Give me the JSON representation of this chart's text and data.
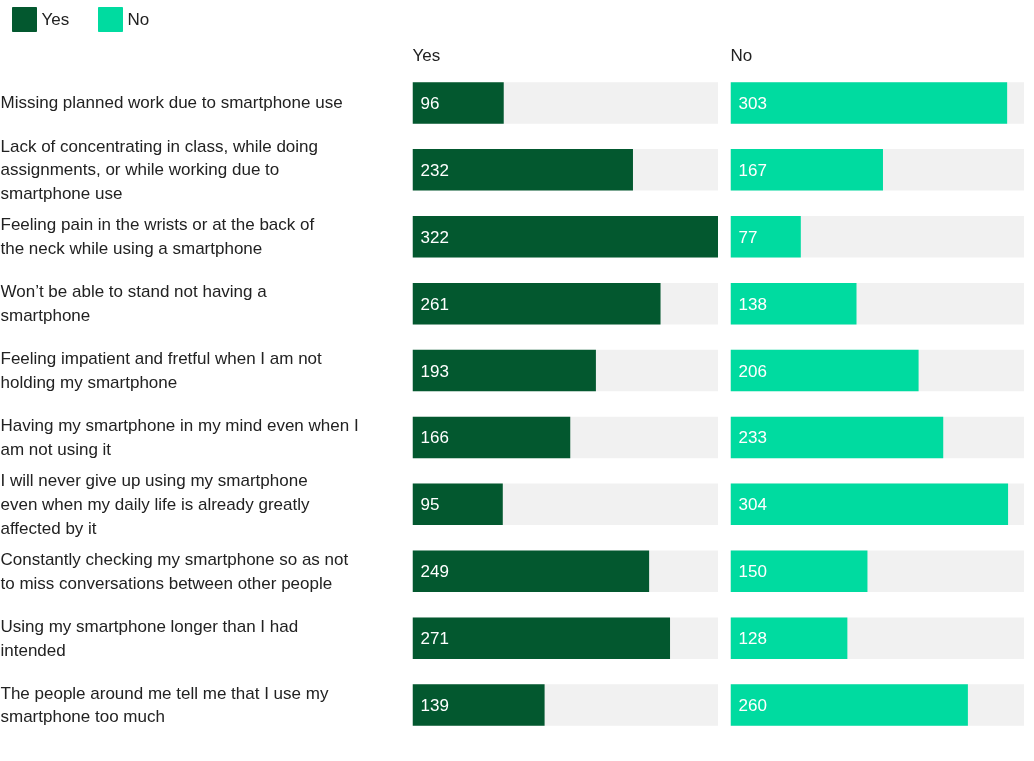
{
  "chart_data": [
    {
      "type": "bar",
      "orientation": "horizontal",
      "title": "Yes",
      "categories": [
        "Missing planned work due to smartphone use",
        "Lack of concentrating in class, while doing assignments, or while working due to smartphone use",
        "Feeling pain in the wrists or at the back of the neck while using a smartphone",
        "Won’t be able to stand not having a smartphone",
        "Feeling impatient and fretful when I am not holding my smartphone",
        "Having my smartphone in my mind even when I am not using it",
        "I will never give up using my smartphone even when my daily life is already greatly affected by it",
        "Constantly checking my smartphone so as not to miss conversations between other people",
        "Using my smartphone longer than I had intended",
        "The people around me tell me that I use my smartphone too much"
      ],
      "series": [
        {
          "name": "Yes",
          "color": "#03582f",
          "values": [
            96,
            232,
            322,
            261,
            193,
            166,
            95,
            249,
            271,
            139
          ]
        }
      ],
      "xlim": [
        0,
        322
      ],
      "data_labels": true,
      "legend": "top",
      "tick_labels": "y"
    },
    {
      "type": "bar",
      "orientation": "horizontal",
      "title": "No",
      "categories": [
        "Missing planned work due to smartphone use",
        "Lack of concentrating in class, while doing assignments, or while working due to smartphone use",
        "Feeling pain in the wrists or at the back of the neck while using a smartphone",
        "Won’t be able to stand not having a smartphone",
        "Feeling impatient and fretful when I am not holding my smartphone",
        "Having my smartphone in my mind even when I am not using it",
        "I will never give up using my smartphone even when my daily life is already greatly affected by it",
        "Constantly checking my smartphone so as not to miss conversations between other people",
        "Using my smartphone longer than I had intended",
        "The people around me tell me that I use my smartphone too much"
      ],
      "series": [
        {
          "name": "No",
          "color": "#00dba0",
          "values": [
            303,
            167,
            77,
            138,
            206,
            233,
            304,
            150,
            128,
            260
          ]
        }
      ],
      "xlim": [
        0,
        322
      ],
      "data_labels": true,
      "legend": "top",
      "tick_labels": false
    }
  ]
}
